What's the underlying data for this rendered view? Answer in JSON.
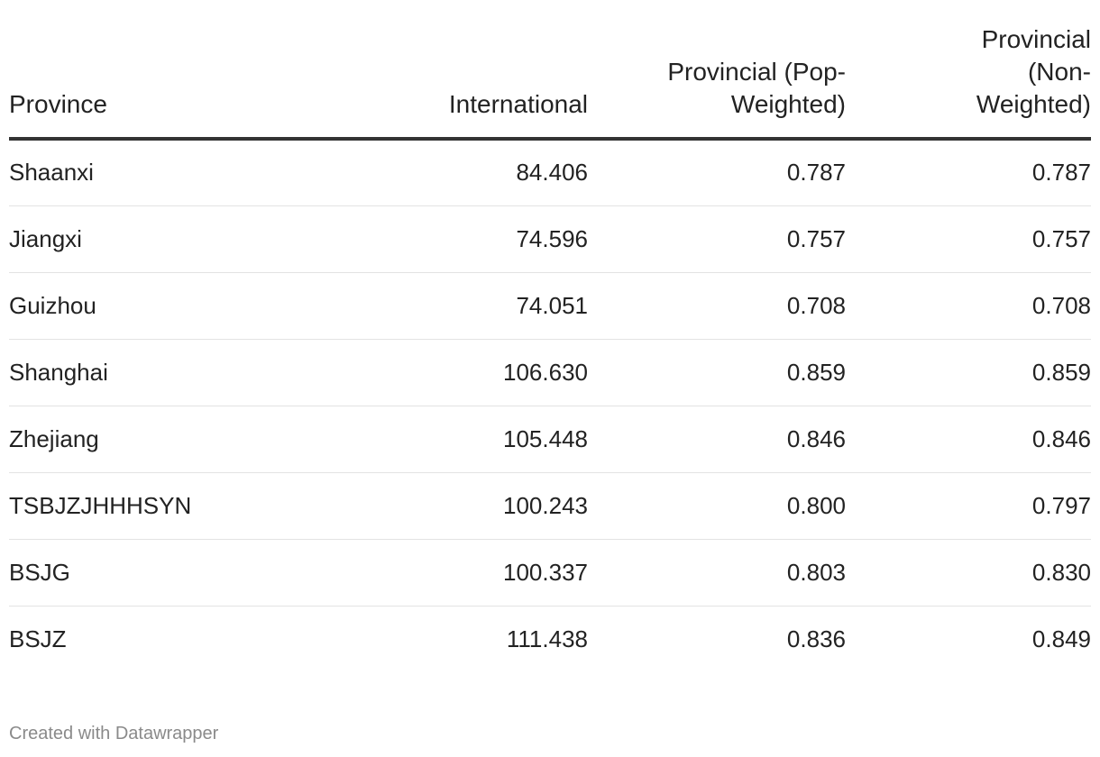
{
  "chart_data": {
    "type": "table",
    "columns": [
      "Province",
      "International",
      [
        "Provincial (Pop-",
        "Weighted)"
      ],
      [
        "Provincial",
        "(Non-",
        "Weighted)"
      ]
    ],
    "rows": [
      [
        "Shaanxi",
        "84.406",
        "0.787",
        "0.787"
      ],
      [
        "Jiangxi",
        "74.596",
        "0.757",
        "0.757"
      ],
      [
        "Guizhou",
        "74.051",
        "0.708",
        "0.708"
      ],
      [
        "Shanghai",
        "106.630",
        "0.859",
        "0.859"
      ],
      [
        "Zhejiang",
        "105.448",
        "0.846",
        "0.846"
      ],
      [
        "TSBJZJHHHSYN",
        "100.243",
        "0.800",
        "0.797"
      ],
      [
        "BSJG",
        "100.337",
        "0.803",
        "0.830"
      ],
      [
        "BSJZ",
        "111.438",
        "0.836",
        "0.849"
      ]
    ]
  },
  "footer": {
    "credit": "Created with Datawrapper"
  }
}
